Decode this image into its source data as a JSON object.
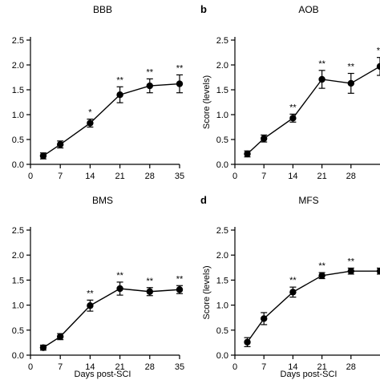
{
  "chart_data": [
    {
      "type": "line",
      "panel_letter": "",
      "title": "BBB",
      "xlabel": "",
      "ylabel": "",
      "x": [
        3,
        7,
        14,
        21,
        28,
        35
      ],
      "series": [
        {
          "values": [
            0.17,
            0.4,
            0.83,
            1.4,
            1.58,
            1.62
          ],
          "errors": [
            0.06,
            0.07,
            0.08,
            0.16,
            0.14,
            0.18
          ]
        }
      ],
      "significance": [
        "",
        "",
        "*",
        "**",
        "**",
        "**"
      ],
      "xticks": [
        "0",
        "7",
        "14",
        "21",
        "28",
        "35"
      ],
      "yticks": [
        "0.0",
        "0.5",
        "1.0",
        "1.5",
        "2.0",
        "2.5"
      ],
      "xlim": [
        0,
        35
      ],
      "ylim": [
        0,
        2.5
      ]
    },
    {
      "type": "line",
      "panel_letter": "b",
      "title": "AOB",
      "xlabel": "",
      "ylabel": "Score (levels)",
      "x": [
        3,
        7,
        14,
        21,
        28,
        35
      ],
      "series": [
        {
          "values": [
            0.21,
            0.52,
            0.93,
            1.71,
            1.63,
            1.97
          ],
          "errors": [
            0.06,
            0.07,
            0.08,
            0.18,
            0.2,
            0.18
          ]
        }
      ],
      "significance": [
        "",
        "",
        "**",
        "**",
        "**",
        "**"
      ],
      "xticks": [
        "0",
        "7",
        "14",
        "21",
        "28"
      ],
      "yticks": [
        "0.0",
        "0.5",
        "1.0",
        "1.5",
        "2.0",
        "2.5"
      ],
      "xlim": [
        0,
        35
      ],
      "ylim": [
        0,
        2.5
      ]
    },
    {
      "type": "line",
      "panel_letter": "",
      "title": "BMS",
      "xlabel": "Days post-SCI",
      "ylabel": "",
      "x": [
        3,
        7,
        14,
        21,
        28,
        35
      ],
      "series": [
        {
          "values": [
            0.15,
            0.37,
            0.99,
            1.33,
            1.27,
            1.31
          ],
          "errors": [
            0.05,
            0.06,
            0.11,
            0.13,
            0.08,
            0.08
          ]
        }
      ],
      "significance": [
        "",
        "",
        "**",
        "**",
        "**",
        "**"
      ],
      "xticks": [
        "0",
        "7",
        "14",
        "21",
        "28",
        "35"
      ],
      "yticks": [
        "0.0",
        "0.5",
        "1.0",
        "1.5",
        "2.0",
        "2.5"
      ],
      "xlim": [
        0,
        35
      ],
      "ylim": [
        0,
        2.5
      ]
    },
    {
      "type": "line",
      "panel_letter": "d",
      "title": "MFS",
      "xlabel": "Days post-SCI",
      "ylabel": "Score (levels)",
      "x": [
        3,
        7,
        14,
        21,
        28,
        35
      ],
      "series": [
        {
          "values": [
            0.26,
            0.73,
            1.26,
            1.59,
            1.68,
            1.68
          ],
          "errors": [
            0.09,
            0.12,
            0.1,
            0.06,
            0.06,
            0.06
          ]
        }
      ],
      "significance": [
        "",
        "",
        "**",
        "**",
        "**",
        ""
      ],
      "xticks": [
        "0",
        "7",
        "14",
        "21",
        "28"
      ],
      "yticks": [
        "0.0",
        "0.5",
        "1.0",
        "1.5",
        "2.0",
        "2.5"
      ],
      "xlim": [
        0,
        35
      ],
      "ylim": [
        0,
        2.5
      ]
    }
  ]
}
